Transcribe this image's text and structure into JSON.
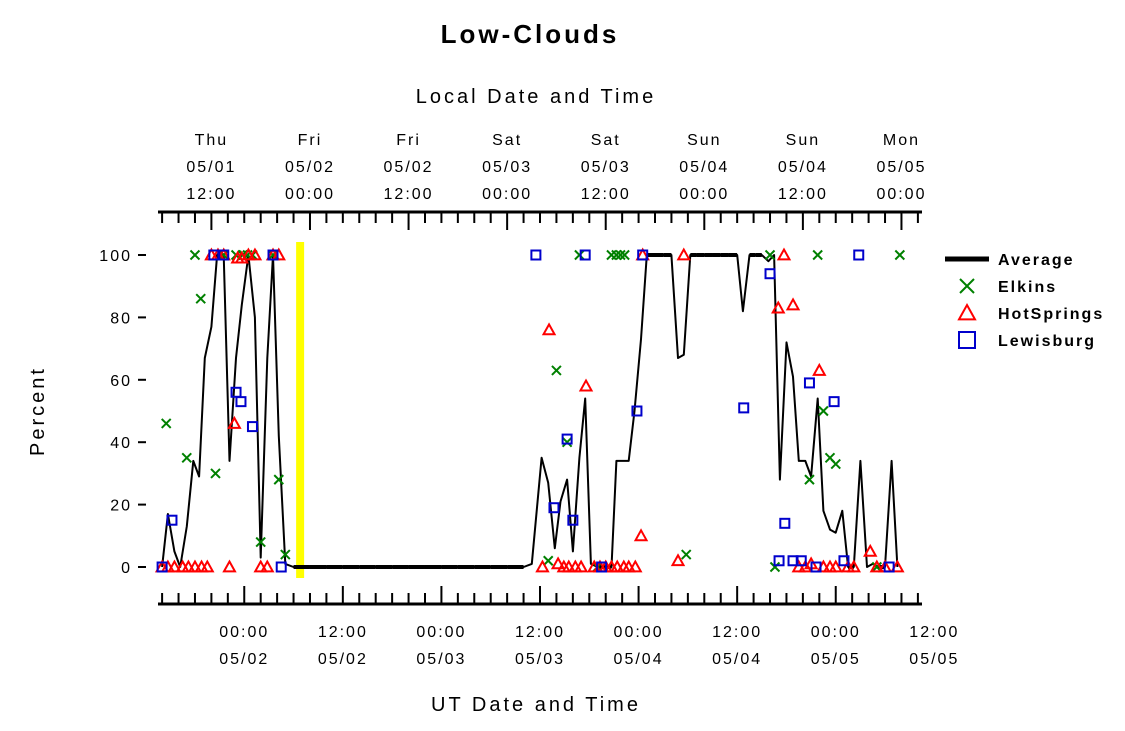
{
  "chart_data": {
    "type": "line",
    "title": "Low-Clouds",
    "top_axis_title": "Local Date and Time",
    "xlabel": "UT Date and Time",
    "ylabel": "Percent",
    "ylim": [
      0,
      100
    ],
    "yticks": [
      0,
      20,
      40,
      60,
      80,
      100
    ],
    "xlim_ut_hours": [
      -6.5,
      86.5
    ],
    "top_ticks": [
      {
        "hour": 0,
        "day": "Thu",
        "date": "05/01",
        "time": "12:00"
      },
      {
        "hour": 12,
        "day": "Fri",
        "date": "05/02",
        "time": "00:00"
      },
      {
        "hour": 24,
        "day": "Fri",
        "date": "05/02",
        "time": "12:00"
      },
      {
        "hour": 36,
        "day": "Sat",
        "date": "05/03",
        "time": "00:00"
      },
      {
        "hour": 48,
        "day": "Sat",
        "date": "05/03",
        "time": "12:00"
      },
      {
        "hour": 60,
        "day": "Sun",
        "date": "05/04",
        "time": "00:00"
      },
      {
        "hour": 72,
        "day": "Sun",
        "date": "05/04",
        "time": "12:00"
      },
      {
        "hour": 84,
        "day": "Mon",
        "date": "05/05",
        "time": "00:00"
      }
    ],
    "bottom_ticks": [
      {
        "hour": 4,
        "time": "00:00",
        "date": "05/02"
      },
      {
        "hour": 16,
        "time": "12:00",
        "date": "05/02"
      },
      {
        "hour": 28,
        "time": "00:00",
        "date": "05/03"
      },
      {
        "hour": 40,
        "time": "12:00",
        "date": "05/03"
      },
      {
        "hour": 52,
        "time": "00:00",
        "date": "05/04"
      },
      {
        "hour": 64,
        "time": "12:00",
        "date": "05/04"
      },
      {
        "hour": 76,
        "time": "00:00",
        "date": "05/05"
      },
      {
        "hour": 88,
        "time": "12:00",
        "date": "05/05"
      }
    ],
    "highlight": {
      "hour": 10.8,
      "color": "#ffff00"
    },
    "legend": {
      "placement": "right",
      "entries": [
        {
          "name": "Average",
          "marker": "line",
          "color": "#000000"
        },
        {
          "name": "Elkins",
          "marker": "x",
          "color": "#008000"
        },
        {
          "name": "HotSprings",
          "marker": "triangle",
          "color": "#ff0000"
        },
        {
          "name": "Lewisburg",
          "marker": "square",
          "color": "#0000cc"
        }
      ]
    },
    "series": [
      {
        "name": "Average",
        "type": "line",
        "color": "#000000",
        "points": [
          [
            -6.0,
            0
          ],
          [
            -5.3,
            17
          ],
          [
            -4.5,
            5
          ],
          [
            -3.8,
            0
          ],
          [
            -3.0,
            13
          ],
          [
            -2.2,
            34
          ],
          [
            -1.5,
            29
          ],
          [
            -0.8,
            67
          ],
          [
            0,
            77
          ],
          [
            0.7,
            100
          ],
          [
            1.5,
            100
          ],
          [
            2.2,
            34
          ],
          [
            3.0,
            67
          ],
          [
            3.7,
            84
          ],
          [
            4.5,
            100
          ],
          [
            5.3,
            80
          ],
          [
            6.0,
            3
          ],
          [
            6.8,
            67
          ],
          [
            7.5,
            100
          ],
          [
            8.2,
            42
          ],
          [
            9.0,
            1
          ],
          [
            10,
            0
          ],
          [
            12,
            0
          ],
          [
            14,
            0
          ],
          [
            16,
            0
          ],
          [
            18,
            0
          ],
          [
            20,
            0
          ],
          [
            22,
            0
          ],
          [
            24,
            0
          ],
          [
            26,
            0
          ],
          [
            28,
            0
          ],
          [
            30,
            0
          ],
          [
            32,
            0
          ],
          [
            34,
            0
          ],
          [
            36,
            0
          ],
          [
            38,
            0
          ],
          [
            39.0,
            1
          ],
          [
            40.2,
            35
          ],
          [
            41.0,
            27
          ],
          [
            41.8,
            6
          ],
          [
            42.5,
            21
          ],
          [
            43.3,
            28
          ],
          [
            44.0,
            5
          ],
          [
            44.8,
            35
          ],
          [
            45.5,
            54
          ],
          [
            46.2,
            1
          ],
          [
            47.0,
            0
          ],
          [
            48.0,
            0
          ],
          [
            48.7,
            0
          ],
          [
            49.3,
            34
          ],
          [
            50.0,
            34
          ],
          [
            50.8,
            34
          ],
          [
            51.5,
            50
          ],
          [
            52.3,
            73
          ],
          [
            53.0,
            100
          ],
          [
            54,
            100
          ],
          [
            55,
            100
          ],
          [
            56,
            100
          ],
          [
            56.8,
            67
          ],
          [
            57.5,
            68
          ],
          [
            58.3,
            100
          ],
          [
            59,
            100
          ],
          [
            60,
            100
          ],
          [
            61,
            100
          ],
          [
            62,
            100
          ],
          [
            63,
            100
          ],
          [
            64,
            100
          ],
          [
            64.7,
            82
          ],
          [
            65.5,
            100
          ],
          [
            66.2,
            100
          ],
          [
            67.0,
            100
          ],
          [
            67.8,
            98
          ],
          [
            68.5,
            100
          ],
          [
            69.2,
            28
          ],
          [
            70.0,
            72
          ],
          [
            70.8,
            61
          ],
          [
            71.5,
            34
          ],
          [
            72.3,
            34
          ],
          [
            73.0,
            29
          ],
          [
            73.8,
            54
          ],
          [
            74.5,
            18
          ],
          [
            75.3,
            12
          ],
          [
            76.0,
            11
          ],
          [
            76.8,
            18
          ],
          [
            77.5,
            0
          ],
          [
            78.2,
            0
          ],
          [
            79.0,
            34
          ],
          [
            79.8,
            0
          ],
          [
            80.5,
            1
          ],
          [
            81.3,
            0
          ],
          [
            82.0,
            0
          ],
          [
            82.8,
            34
          ],
          [
            83.5,
            0
          ]
        ]
      },
      {
        "name": "Elkins",
        "type": "scatter",
        "marker": "x",
        "color": "#008000",
        "points": [
          [
            -5.5,
            46
          ],
          [
            -3.0,
            35
          ],
          [
            -2.0,
            100
          ],
          [
            -1.3,
            86
          ],
          [
            0.5,
            30
          ],
          [
            1.5,
            100
          ],
          [
            3.0,
            100
          ],
          [
            3.8,
            100
          ],
          [
            4.4,
            100
          ],
          [
            5.0,
            100
          ],
          [
            6.0,
            8
          ],
          [
            7.5,
            100
          ],
          [
            8.2,
            28
          ],
          [
            9.0,
            4
          ],
          [
            41.0,
            2
          ],
          [
            42.0,
            63
          ],
          [
            43.3,
            40
          ],
          [
            44.8,
            100
          ],
          [
            47.0,
            0
          ],
          [
            48.7,
            100
          ],
          [
            49.3,
            100
          ],
          [
            49.8,
            100
          ],
          [
            50.3,
            100
          ],
          [
            57.8,
            4
          ],
          [
            68.0,
            100
          ],
          [
            68.6,
            0
          ],
          [
            72.8,
            28
          ],
          [
            73.8,
            100
          ],
          [
            74.5,
            50
          ],
          [
            75.3,
            35
          ],
          [
            76.0,
            33
          ],
          [
            81.0,
            0
          ],
          [
            83.8,
            100
          ]
        ]
      },
      {
        "name": "HotSprings",
        "type": "scatter",
        "marker": "triangle",
        "color": "#ff0000",
        "points": [
          [
            -6.0,
            0
          ],
          [
            -5.3,
            0
          ],
          [
            -4.5,
            0
          ],
          [
            -3.5,
            0
          ],
          [
            -2.8,
            0
          ],
          [
            -2.0,
            0
          ],
          [
            -1.2,
            0
          ],
          [
            -0.5,
            0
          ],
          [
            0,
            100
          ],
          [
            0.8,
            100
          ],
          [
            1.5,
            100
          ],
          [
            2.2,
            0
          ],
          [
            2.8,
            46
          ],
          [
            3.2,
            99
          ],
          [
            3.7,
            99
          ],
          [
            4.5,
            100
          ],
          [
            5.3,
            100
          ],
          [
            6.0,
            0
          ],
          [
            6.8,
            0
          ],
          [
            7.5,
            100
          ],
          [
            8.2,
            100
          ],
          [
            40.3,
            0
          ],
          [
            41.1,
            76
          ],
          [
            42.2,
            1
          ],
          [
            42.9,
            0
          ],
          [
            43.5,
            0
          ],
          [
            44.3,
            0
          ],
          [
            45.0,
            0
          ],
          [
            45.6,
            58
          ],
          [
            46.6,
            0
          ],
          [
            47.3,
            0
          ],
          [
            48.0,
            0
          ],
          [
            48.7,
            0
          ],
          [
            49.4,
            0
          ],
          [
            50.2,
            0
          ],
          [
            50.8,
            0
          ],
          [
            51.6,
            0
          ],
          [
            52.3,
            10
          ],
          [
            52.5,
            100
          ],
          [
            56.8,
            2
          ],
          [
            57.5,
            100
          ],
          [
            69.0,
            83
          ],
          [
            69.7,
            100
          ],
          [
            70.8,
            84
          ],
          [
            71.5,
            0
          ],
          [
            72.3,
            0
          ],
          [
            73.0,
            1
          ],
          [
            74.0,
            63
          ],
          [
            74.5,
            0
          ],
          [
            75.3,
            0
          ],
          [
            76.0,
            0
          ],
          [
            77.5,
            0
          ],
          [
            78.2,
            0
          ],
          [
            80.2,
            5
          ],
          [
            81.0,
            0
          ],
          [
            82.0,
            0
          ],
          [
            83.5,
            0
          ]
        ]
      },
      {
        "name": "Lewisburg",
        "type": "scatter",
        "marker": "square",
        "color": "#0000cc",
        "points": [
          [
            -6.0,
            0
          ],
          [
            -4.8,
            15
          ],
          [
            0.3,
            100
          ],
          [
            1.5,
            100
          ],
          [
            3.0,
            56
          ],
          [
            3.6,
            53
          ],
          [
            5.0,
            45
          ],
          [
            7.5,
            100
          ],
          [
            8.5,
            0
          ],
          [
            39.5,
            100
          ],
          [
            41.7,
            19
          ],
          [
            43.3,
            41
          ],
          [
            44.0,
            15
          ],
          [
            45.5,
            100
          ],
          [
            47.5,
            0
          ],
          [
            51.8,
            50
          ],
          [
            52.5,
            100
          ],
          [
            64.8,
            51
          ],
          [
            68.0,
            94
          ],
          [
            69.1,
            2
          ],
          [
            69.8,
            14
          ],
          [
            70.8,
            2
          ],
          [
            71.8,
            2
          ],
          [
            72.8,
            59
          ],
          [
            73.6,
            0
          ],
          [
            75.8,
            53
          ],
          [
            77.0,
            2
          ],
          [
            78.8,
            100
          ],
          [
            82.5,
            0
          ]
        ]
      }
    ]
  }
}
